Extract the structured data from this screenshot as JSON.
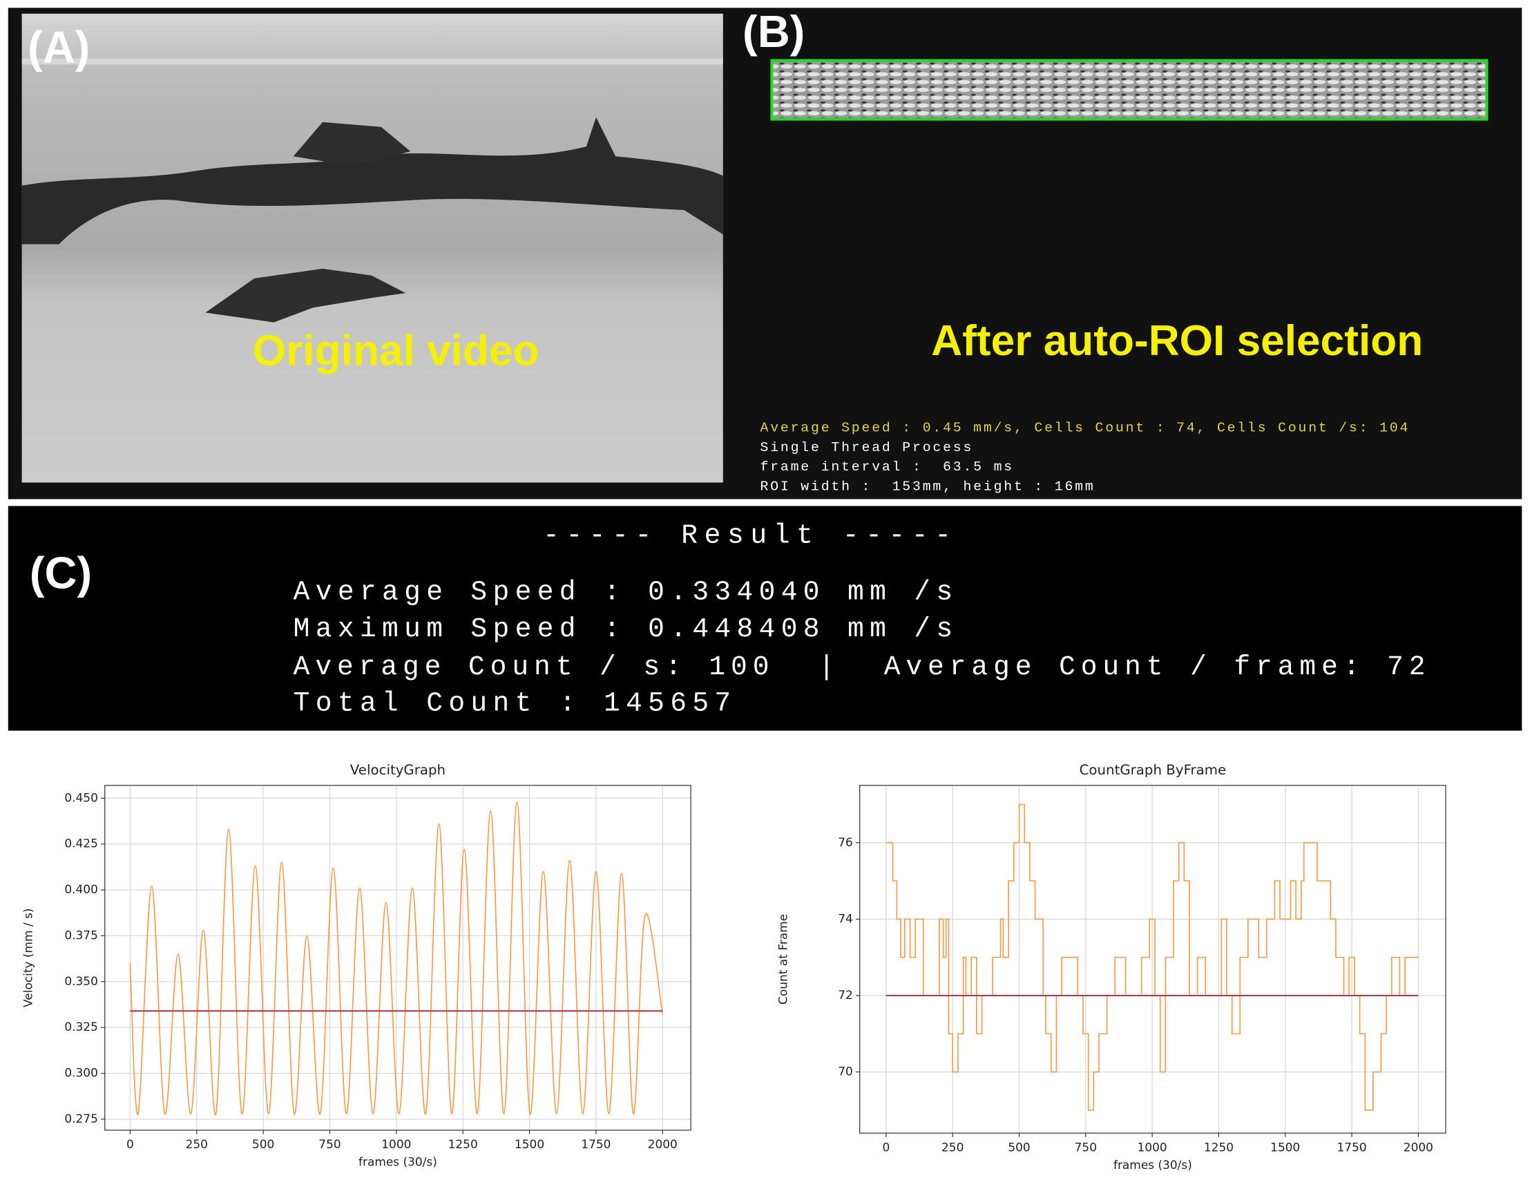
{
  "panels": {
    "a_label": "(A)",
    "a_caption": "Original video",
    "b_label": "(B)",
    "b_caption": "After auto-ROI selection",
    "b_overlay": [
      "Average Speed : 0.45 mm/s, Cells Count : 74, Cells Count /s: 104",
      "Single Thread Process",
      "frame interval :  63.5 ms",
      "ROI width :  153mm, height : 16mm"
    ],
    "c_label": "(C)",
    "c_title": "----- Result -----",
    "c_lines": [
      "Average Speed : 0.334040 mm /s",
      "Maximum Speed : 0.448408 mm /s",
      "Average Count / s: 100  |  Average Count / frame: 72",
      "Total Count : 145657"
    ]
  },
  "chart_data": [
    {
      "type": "line",
      "title": "VelocityGraph",
      "xlabel": "frames (30/s)",
      "ylabel": "Velocity (mm / s)",
      "smooth": true,
      "color": "#f39c4a",
      "mean_line": 0.334,
      "mean_color": "#b03a48",
      "grid": true,
      "x": [
        0,
        30,
        81,
        130,
        180,
        228,
        275,
        322,
        370,
        420,
        470,
        520,
        569,
        616,
        664,
        714,
        763,
        812,
        862,
        912,
        961,
        1010,
        1060,
        1110,
        1160,
        1208,
        1255,
        1304,
        1354,
        1404,
        1453,
        1502,
        1552,
        1602,
        1651,
        1700,
        1750,
        1798,
        1846,
        1890,
        1934,
        2000
      ],
      "values": [
        0.36,
        0.278,
        0.402,
        0.278,
        0.365,
        0.278,
        0.378,
        0.278,
        0.433,
        0.278,
        0.413,
        0.278,
        0.415,
        0.278,
        0.375,
        0.278,
        0.412,
        0.278,
        0.401,
        0.278,
        0.393,
        0.278,
        0.401,
        0.278,
        0.436,
        0.278,
        0.422,
        0.278,
        0.443,
        0.278,
        0.448,
        0.278,
        0.41,
        0.278,
        0.416,
        0.278,
        0.41,
        0.278,
        0.409,
        0.278,
        0.386,
        0.332
      ],
      "xlim": [
        -95,
        2106
      ],
      "xticks": [
        0,
        250,
        500,
        750,
        1000,
        1250,
        1500,
        1750,
        2000
      ],
      "ylim": [
        0.269,
        0.457
      ],
      "yticks": [
        0.275,
        {
          "value": 0.3,
          "label": "0.300"
        },
        0.325,
        {
          "value": 0.35,
          "label": "0.350"
        },
        0.375,
        {
          "value": 0.4,
          "label": "0.400"
        },
        0.425,
        {
          "value": 0.45,
          "label": "0.450"
        }
      ]
    },
    {
      "type": "line",
      "title": "CountGraph ByFrame",
      "xlabel": "frames (30/s)",
      "ylabel": "Count at Frame",
      "drawstyle": "steps-post",
      "color": "#f39c4a",
      "mean_line": 72,
      "mean_color": "#b03a48",
      "grid": true,
      "x": [
        0,
        25,
        40,
        55,
        70,
        90,
        110,
        140,
        200,
        215,
        225,
        235,
        250,
        270,
        290,
        300,
        320,
        340,
        360,
        400,
        430,
        440,
        460,
        480,
        500,
        520,
        540,
        560,
        590,
        600,
        620,
        640,
        660,
        720,
        740,
        760,
        780,
        800,
        830,
        860,
        900,
        960,
        990,
        1010,
        1030,
        1050,
        1080,
        1100,
        1120,
        1140,
        1170,
        1200,
        1260,
        1280,
        1300,
        1330,
        1360,
        1400,
        1430,
        1460,
        1480,
        1520,
        1540,
        1560,
        1570,
        1620,
        1670,
        1690,
        1720,
        1740,
        1760,
        1780,
        1800,
        1830,
        1860,
        1880,
        1900,
        1930,
        1950,
        2000
      ],
      "values": [
        76,
        75,
        74,
        73,
        74,
        73,
        74,
        72,
        74,
        73,
        74,
        71,
        70,
        71,
        73,
        72,
        73,
        71,
        72,
        73,
        74,
        73,
        75,
        76,
        77,
        76,
        75,
        74,
        72,
        71,
        70,
        72,
        73,
        72,
        71,
        69,
        70,
        71,
        72,
        73,
        72,
        73,
        74,
        72,
        70,
        73,
        75,
        76,
        75,
        72,
        73,
        72,
        74,
        72,
        71,
        73,
        74,
        73,
        74,
        75,
        74,
        75,
        74,
        75,
        76,
        75,
        74,
        73,
        72,
        73,
        72,
        71,
        69,
        70,
        71,
        72,
        73,
        72,
        73,
        73
      ],
      "xlim": [
        -99,
        2103
      ],
      "xticks": [
        0,
        250,
        500,
        750,
        1000,
        1250,
        1500,
        1750,
        2000
      ],
      "ylim": [
        68.4,
        77.5
      ],
      "yticks": [
        70,
        72,
        74,
        76
      ]
    }
  ]
}
